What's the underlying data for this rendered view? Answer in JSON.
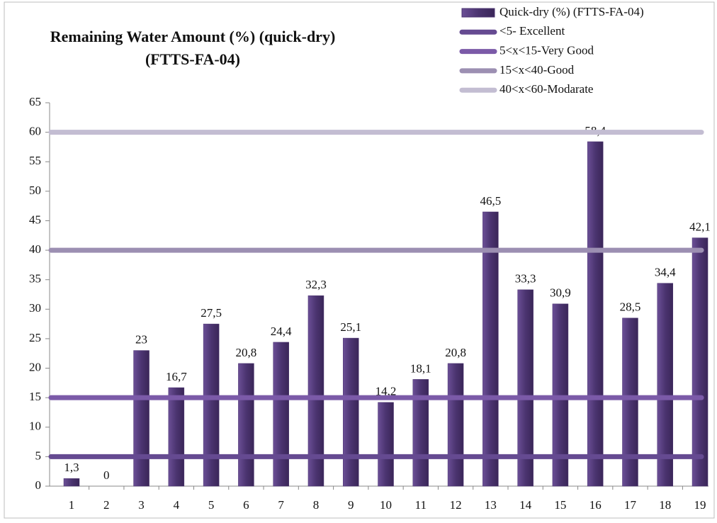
{
  "chart_data": {
    "type": "bar",
    "title": [
      "Remaining  Water Amount  (%) (quick-dry)",
      "(FTTS-FA-04)"
    ],
    "categories": [
      "1",
      "2",
      "3",
      "4",
      "5",
      "6",
      "7",
      "8",
      "9",
      "10",
      "11",
      "12",
      "13",
      "14",
      "15",
      "16",
      "17",
      "18",
      "19"
    ],
    "series": [
      {
        "name": "Quick-dry (%) (FTTS-FA-04)",
        "color": "#4b3470",
        "values": [
          1.3,
          0,
          23,
          16.7,
          27.5,
          20.8,
          24.4,
          32.3,
          25.1,
          14.2,
          18.1,
          20.8,
          46.5,
          33.3,
          30.9,
          58.4,
          28.5,
          34.4,
          42.1
        ],
        "value_labels": [
          "1,3",
          "0",
          "23",
          "16,7",
          "27,5",
          "20,8",
          "24,4",
          "32,3",
          "25,1",
          "14,2",
          "18,1",
          "20,8",
          "46,5",
          "33,3",
          "30,9",
          "58,4",
          "28,5",
          "34,4",
          "42,1"
        ]
      }
    ],
    "reference_lines": [
      {
        "name": "<5- Excellent",
        "value": 5,
        "color": "#654a91"
      },
      {
        "name": "5<x<15-Very Good",
        "value": 15,
        "color": "#7b5aa8"
      },
      {
        "name": "15<x<40-Good",
        "value": 40,
        "color": "#9c8fb2"
      },
      {
        "name": "40<x<60-Modarate",
        "value": 60,
        "color": "#c3bdd2"
      }
    ],
    "ylim": [
      0,
      65
    ],
    "yticks": [
      0,
      5,
      10,
      15,
      20,
      25,
      30,
      35,
      40,
      45,
      50,
      55,
      60,
      65
    ],
    "legend": "top-right"
  }
}
